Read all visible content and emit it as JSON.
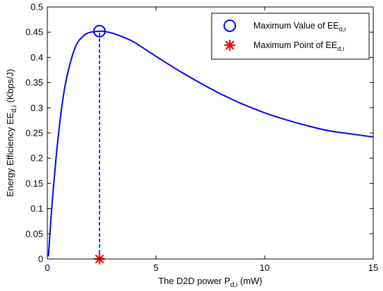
{
  "chart_data": {
    "type": "line",
    "title": "",
    "xlabel": {
      "main": "The D2D power P",
      "sub": "d,i",
      "unit": " (mW)"
    },
    "ylabel": {
      "main": "Energy Efficiency EE",
      "sub": "d,i",
      "unit": " (Kbps/J)"
    },
    "xlim": [
      0,
      15
    ],
    "ylim": [
      0,
      0.5
    ],
    "xticks": [
      0,
      5,
      10,
      15
    ],
    "yticks": [
      0,
      0.05,
      0.1,
      0.15,
      0.2,
      0.25,
      0.3,
      0.35,
      0.4,
      0.45,
      0.5
    ],
    "xtick_labels": [
      "0",
      "5",
      "10",
      "15"
    ],
    "ytick_labels": [
      "0",
      "0.05",
      "0.1",
      "0.15",
      "0.2",
      "0.25",
      "0.3",
      "0.35",
      "0.4",
      "0.45",
      "0.5"
    ],
    "grid": false,
    "legend_position": "top-right",
    "colors": {
      "curve": "#0000ff",
      "max_point": "#ff0000",
      "marker": "#0000ff"
    },
    "series": [
      {
        "kind": "curve",
        "x": [
          0.05,
          0.2,
          0.4,
          0.6,
          0.8,
          1.0,
          1.2,
          1.4,
          1.6,
          1.8,
          2.0,
          2.2,
          2.4,
          2.7,
          3.0,
          3.5,
          4.0,
          5.0,
          6.0,
          7.0,
          8.0,
          9.0,
          10.0,
          11.0,
          12.0,
          13.0,
          14.0,
          15.0
        ],
        "y": [
          0.005,
          0.1,
          0.2,
          0.28,
          0.34,
          0.38,
          0.41,
          0.43,
          0.44,
          0.447,
          0.45,
          0.451,
          0.452,
          0.451,
          0.448,
          0.44,
          0.43,
          0.402,
          0.375,
          0.35,
          0.327,
          0.307,
          0.29,
          0.276,
          0.264,
          0.254,
          0.248,
          0.242
        ]
      },
      {
        "kind": "max_value",
        "name": "Maximum Value of EE",
        "name_sub": "d,i",
        "marker": "circle",
        "x": 2.4,
        "y": 0.452
      },
      {
        "kind": "max_point",
        "name": "Maximum Point of EE",
        "name_sub": "d,i",
        "marker": "star",
        "x": 2.4,
        "y": 0
      }
    ],
    "dropline": {
      "x": 2.4,
      "y_from": 0,
      "y_to": 0.452,
      "style": "dashed"
    }
  }
}
